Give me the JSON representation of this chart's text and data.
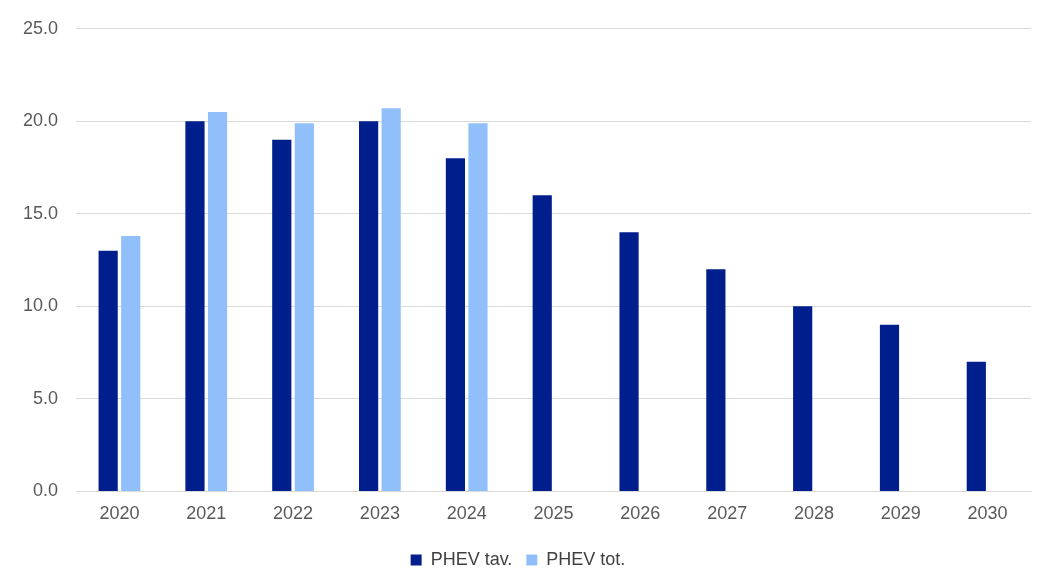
{
  "chart_data": {
    "type": "bar",
    "categories": [
      "2020",
      "2021",
      "2022",
      "2023",
      "2024",
      "2025",
      "2026",
      "2027",
      "2028",
      "2029",
      "2030"
    ],
    "series": [
      {
        "name": "PHEV tav.",
        "color": "#001e8c",
        "values": [
          13,
          20,
          19,
          20,
          18,
          16,
          14,
          12,
          10,
          9,
          7
        ]
      },
      {
        "name": "PHEV tot.",
        "color": "#91bffa",
        "values": [
          13.8,
          20.5,
          19.9,
          20.7,
          19.9,
          null,
          null,
          null,
          null,
          null,
          null
        ]
      }
    ],
    "ylim": [
      0,
      25
    ],
    "yticks": [
      {
        "value": 0,
        "label": "0.0"
      },
      {
        "value": 5,
        "label": "5.0"
      },
      {
        "value": 10,
        "label": "10.0"
      },
      {
        "value": 15,
        "label": "15.0"
      },
      {
        "value": 20,
        "label": "20.0"
      },
      {
        "value": 25,
        "label": "25.0"
      }
    ],
    "grid": "y",
    "legend": "bottom"
  }
}
